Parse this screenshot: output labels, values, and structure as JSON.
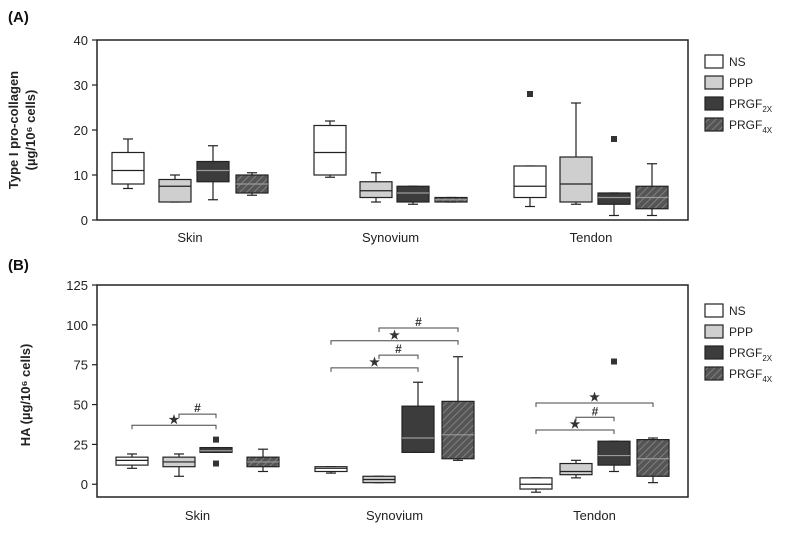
{
  "colors": {
    "NS": "#ffffff",
    "PPP": "#cfcfcf",
    "PRGF2X": "#3c3c3c",
    "PRGF4X": "#555555",
    "axis": "#222222"
  },
  "chart_data": [
    {
      "type": "box",
      "panel": "(A)",
      "ylabel": [
        "Type I pro-collagen",
        "(µg/10⁶ cells)"
      ],
      "ylim": [
        0,
        40
      ],
      "yticks": [
        0,
        10,
        20,
        30,
        40
      ],
      "categories": [
        "Skin",
        "Synovium",
        "Tendon"
      ],
      "legend": [
        {
          "name": "NS"
        },
        {
          "name": "PPP"
        },
        {
          "name": "PRGF",
          "sub": "2X"
        },
        {
          "name": "PRGF",
          "sub": "4X"
        }
      ],
      "series": [
        {
          "name": "NS",
          "color": "#ffffff",
          "boxes": [
            {
              "min": 7,
              "q1": 8,
              "median": 11,
              "q3": 15,
              "max": 18,
              "outliers": []
            },
            {
              "min": 9.5,
              "q1": 10,
              "median": 15,
              "q3": 21,
              "max": 22,
              "outliers": []
            },
            {
              "min": 3,
              "q1": 5,
              "median": 7.5,
              "q3": 12,
              "max": 12,
              "outliers": [
                28
              ]
            }
          ]
        },
        {
          "name": "PPP",
          "color": "#cfcfcf",
          "boxes": [
            {
              "min": 4,
              "q1": 4,
              "median": 7.5,
              "q3": 9,
              "max": 10,
              "outliers": []
            },
            {
              "min": 4,
              "q1": 5,
              "median": 6.5,
              "q3": 8.5,
              "max": 10.5,
              "outliers": []
            },
            {
              "min": 3.5,
              "q1": 4,
              "median": 8,
              "q3": 14,
              "max": 26,
              "outliers": []
            }
          ]
        },
        {
          "name": "PRGF2X",
          "color": "#3c3c3c",
          "boxes": [
            {
              "min": 4.5,
              "q1": 8.5,
              "median": 11,
              "q3": 13,
              "max": 16.5,
              "outliers": []
            },
            {
              "min": 3.5,
              "q1": 4,
              "median": 6,
              "q3": 7.5,
              "max": 7.5,
              "outliers": []
            },
            {
              "min": 1,
              "q1": 3.5,
              "median": 5,
              "q3": 6,
              "max": 6,
              "outliers": [
                18
              ]
            }
          ]
        },
        {
          "name": "PRGF4X",
          "color": "#555555",
          "boxes": [
            {
              "min": 5.5,
              "q1": 6,
              "median": 8,
              "q3": 10,
              "max": 10.5,
              "outliers": []
            },
            {
              "min": 4,
              "q1": 4,
              "median": 4.5,
              "q3": 5,
              "max": 5,
              "outliers": []
            },
            {
              "min": 1,
              "q1": 2.5,
              "median": 5,
              "q3": 7.5,
              "max": 12.5,
              "outliers": []
            }
          ]
        }
      ]
    },
    {
      "type": "box",
      "panel": "(B)",
      "ylabel": [
        "HA (µg/10⁶ cells)"
      ],
      "ylim": [
        -8,
        125
      ],
      "yticks": [
        0,
        25,
        50,
        75,
        100,
        125
      ],
      "categories": [
        "Skin",
        "Synovium",
        "Tendon"
      ],
      "legend": [
        {
          "name": "NS"
        },
        {
          "name": "PPP"
        },
        {
          "name": "PRGF",
          "sub": "2X"
        },
        {
          "name": "PRGF",
          "sub": "4X"
        }
      ],
      "series": [
        {
          "name": "NS",
          "color": "#ffffff",
          "boxes": [
            {
              "min": 10,
              "q1": 12,
              "median": 15,
              "q3": 17,
              "max": 19,
              "outliers": []
            },
            {
              "min": 7,
              "q1": 8,
              "median": 10,
              "q3": 11,
              "max": 11,
              "outliers": []
            },
            {
              "min": -5,
              "q1": -3,
              "median": 0,
              "q3": 4,
              "max": 4,
              "outliers": []
            }
          ]
        },
        {
          "name": "PPP",
          "color": "#cfcfcf",
          "boxes": [
            {
              "min": 5,
              "q1": 11,
              "median": 14,
              "q3": 17,
              "max": 19,
              "outliers": []
            },
            {
              "min": 1,
              "q1": 1,
              "median": 3,
              "q3": 5,
              "max": 5,
              "outliers": []
            },
            {
              "min": 4,
              "q1": 6,
              "median": 8,
              "q3": 13,
              "max": 15,
              "outliers": []
            }
          ]
        },
        {
          "name": "PRGF2X",
          "color": "#3c3c3c",
          "boxes": [
            {
              "min": 20,
              "q1": 20,
              "median": 21,
              "q3": 23,
              "max": 23,
              "outliers": [
                28,
                13
              ]
            },
            {
              "min": 20,
              "q1": 20,
              "median": 29,
              "q3": 49,
              "max": 64,
              "outliers": []
            },
            {
              "min": 8,
              "q1": 12,
              "median": 18,
              "q3": 27,
              "max": 27,
              "outliers": [
                77
              ]
            }
          ]
        },
        {
          "name": "PRGF4X",
          "color": "#555555",
          "boxes": [
            {
              "min": 8,
              "q1": 11,
              "median": 14,
              "q3": 17,
              "max": 22,
              "outliers": []
            },
            {
              "min": 15,
              "q1": 16,
              "median": 31,
              "q3": 52,
              "max": 80,
              "outliers": []
            },
            {
              "min": 1,
              "q1": 5,
              "median": 16,
              "q3": 28,
              "max": 29,
              "outliers": []
            }
          ]
        }
      ],
      "significance": [
        {
          "category": "Skin",
          "from": "NS",
          "to": "PRGF2X",
          "y": 37,
          "symbol": "★"
        },
        {
          "category": "Skin",
          "from": "PPP",
          "to": "PRGF2X",
          "y": 44,
          "symbol": "#"
        },
        {
          "category": "Synovium",
          "from": "NS",
          "to": "PRGF2X",
          "y": 73,
          "symbol": "★"
        },
        {
          "category": "Synovium",
          "from": "PPP",
          "to": "PRGF2X",
          "y": 81,
          "symbol": "#"
        },
        {
          "category": "Synovium",
          "from": "NS",
          "to": "PRGF4X",
          "y": 90,
          "symbol": "★"
        },
        {
          "category": "Synovium",
          "from": "PPP",
          "to": "PRGF4X",
          "y": 98,
          "symbol": "#"
        },
        {
          "category": "Tendon",
          "from": "NS",
          "to": "PRGF2X",
          "y": 34,
          "symbol": "★"
        },
        {
          "category": "Tendon",
          "from": "PPP",
          "to": "PRGF2X",
          "y": 42,
          "symbol": "#"
        },
        {
          "category": "Tendon",
          "from": "NS",
          "to": "PRGF4X",
          "y": 51,
          "symbol": "★"
        }
      ]
    }
  ]
}
